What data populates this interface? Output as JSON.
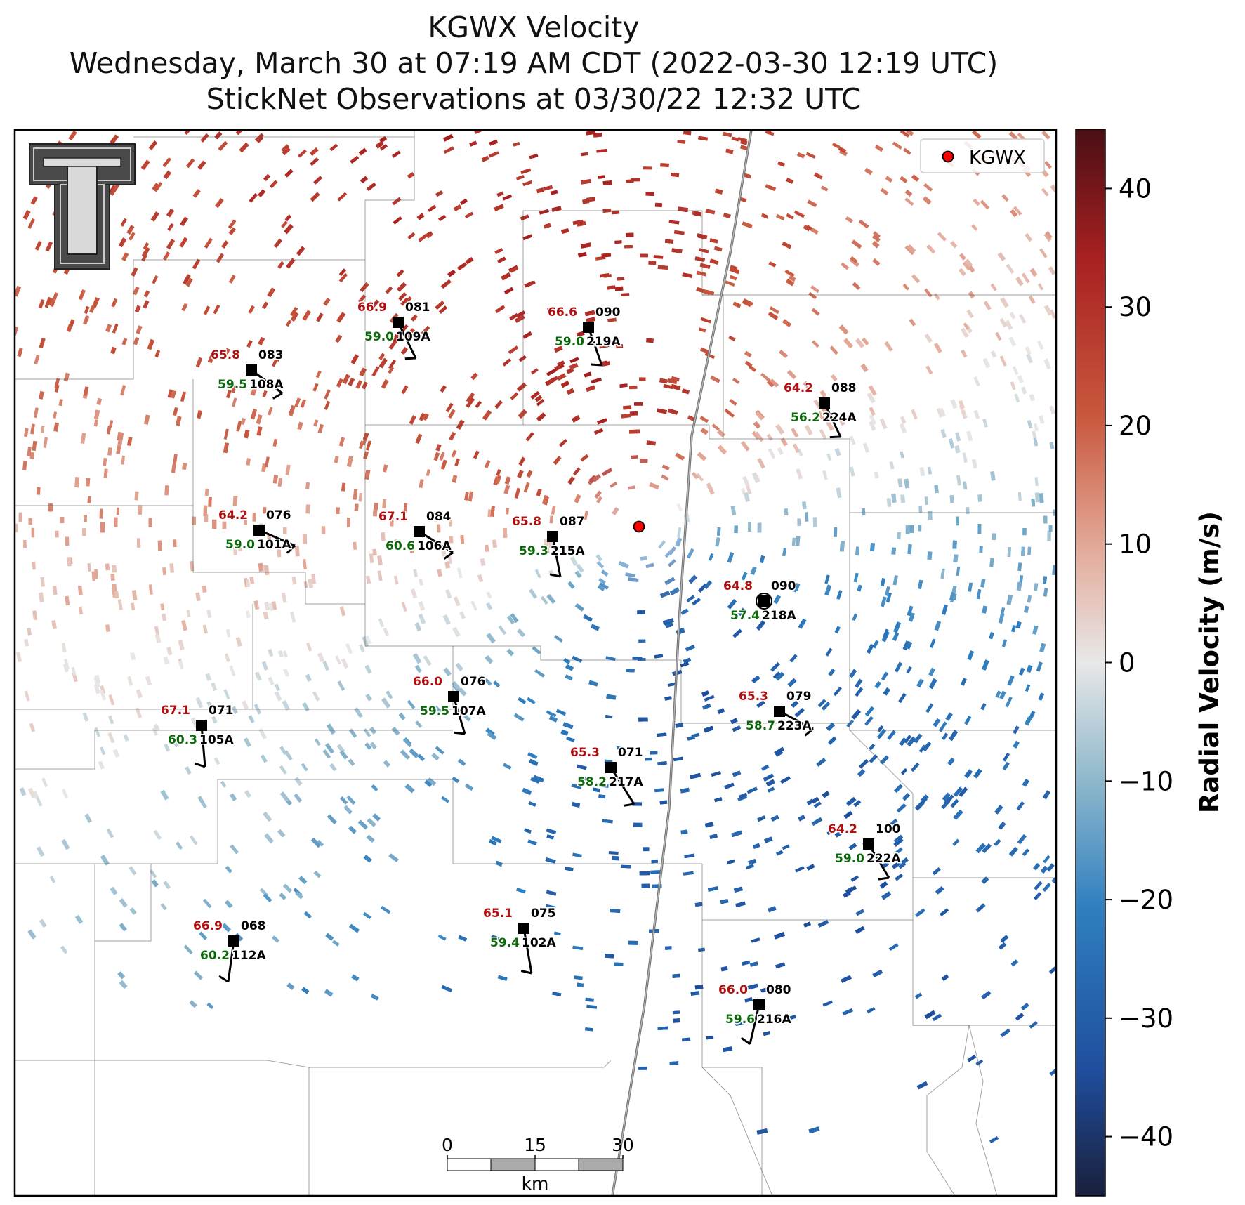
{
  "title": {
    "line1": "KGWX Velocity",
    "line2": "Wednesday, March 30 at 07:19 AM CDT (2022-03-30 12:19 UTC)",
    "line3": "StickNet Observations at 03/30/22 12:32 UTC"
  },
  "radar": {
    "name": "KGWX",
    "legend_label": "KGWX",
    "marker_color": "#ff0000"
  },
  "colorbar": {
    "label": "Radial Velocity (m/s)",
    "range": [
      -45,
      45
    ],
    "ticks": [
      40,
      30,
      20,
      10,
      0,
      -10,
      -20,
      -30,
      -40
    ],
    "tick_labels": [
      "40",
      "30",
      "20",
      "10",
      "0",
      "−10",
      "−20",
      "−30",
      "−40"
    ],
    "colors": [
      "#1a1f3d",
      "#1f4f9e",
      "#2f7fc0",
      "#8fb8cc",
      "#e8e8e8",
      "#e3a897",
      "#c9583e",
      "#a82020",
      "#4a0f14"
    ]
  },
  "scale_bar": {
    "ticks": [
      "0",
      "15",
      "30"
    ],
    "unit": "km"
  },
  "stations": [
    {
      "id": "109A",
      "temp": "66.9",
      "dew": "59.0",
      "dir": "081"
    },
    {
      "id": "219A",
      "temp": "66.6",
      "dew": "59.0",
      "dir": "090"
    },
    {
      "id": "108A",
      "temp": "65.8",
      "dew": "59.5",
      "dir": "083"
    },
    {
      "id": "224A",
      "temp": "64.2",
      "dew": "56.2",
      "dir": "088"
    },
    {
      "id": "101A",
      "temp": "64.2",
      "dew": "59.0",
      "dir": "076"
    },
    {
      "id": "106A",
      "temp": "67.1",
      "dew": "60.6",
      "dir": "084"
    },
    {
      "id": "215A",
      "temp": "65.8",
      "dew": "59.3",
      "dir": "087"
    },
    {
      "id": "218A",
      "temp": "64.8",
      "dew": "57.4",
      "dir": "090"
    },
    {
      "id": "107A",
      "temp": "66.0",
      "dew": "59.5",
      "dir": "076"
    },
    {
      "id": "223A",
      "temp": "65.3",
      "dew": "58.7",
      "dir": "079"
    },
    {
      "id": "105A",
      "temp": "67.1",
      "dew": "60.3",
      "dir": "071"
    },
    {
      "id": "217A",
      "temp": "65.3",
      "dew": "58.2",
      "dir": "071"
    },
    {
      "id": "222A",
      "temp": "64.2",
      "dew": "59.0",
      "dir": "100"
    },
    {
      "id": "102A",
      "temp": "65.1",
      "dew": "59.4",
      "dir": "075"
    },
    {
      "id": "112A",
      "temp": "66.9",
      "dew": "60.2",
      "dir": "068"
    },
    {
      "id": "216A",
      "temp": "66.0",
      "dew": "59.6",
      "dir": "080"
    }
  ],
  "logo": {
    "text": "TT"
  }
}
